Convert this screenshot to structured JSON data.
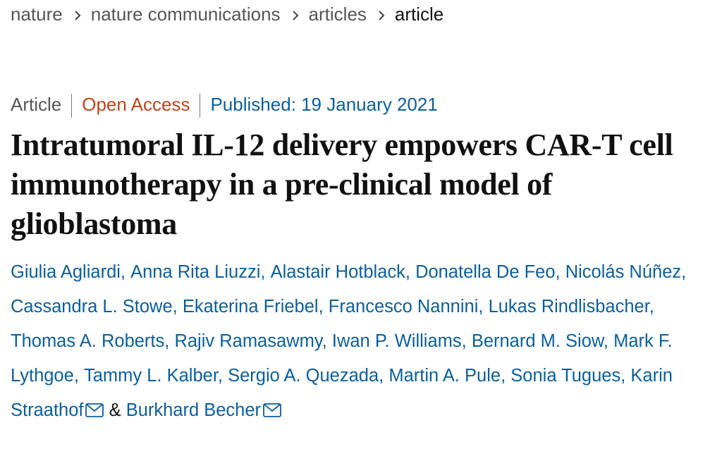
{
  "breadcrumb": [
    "nature",
    "nature communications",
    "articles",
    "article"
  ],
  "article": {
    "type": "Article",
    "access": "Open Access",
    "published": "Published: 19 January 2021",
    "title": "Intratumoral IL-12 delivery empowers CAR-T cell immunotherapy in a pre-clinical model of glioblastoma",
    "author_separator": ",",
    "last_author_separator": "&",
    "authors": [
      {
        "name": "Giulia Agliardi",
        "corresponding": false
      },
      {
        "name": "Anna Rita Liuzzi",
        "corresponding": false
      },
      {
        "name": "Alastair Hotblack",
        "corresponding": false
      },
      {
        "name": "Donatella De Feo",
        "corresponding": false
      },
      {
        "name": "Nicolás Núñez",
        "corresponding": false
      },
      {
        "name": "Cassandra L. Stowe",
        "corresponding": false
      },
      {
        "name": "Ekaterina Friebel",
        "corresponding": false
      },
      {
        "name": "Francesco Nannini",
        "corresponding": false
      },
      {
        "name": "Lukas Rindlisbacher",
        "corresponding": false
      },
      {
        "name": "Thomas A. Roberts",
        "corresponding": false
      },
      {
        "name": "Rajiv Ramasawmy",
        "corresponding": false
      },
      {
        "name": "Iwan P. Williams",
        "corresponding": false
      },
      {
        "name": "Bernard M. Siow",
        "corresponding": false
      },
      {
        "name": "Mark F. Lythgoe",
        "corresponding": false
      },
      {
        "name": "Tammy L. Kalber",
        "corresponding": false
      },
      {
        "name": "Sergio A. Quezada",
        "corresponding": false
      },
      {
        "name": "Martin A. Pule",
        "corresponding": false
      },
      {
        "name": "Sonia Tugues",
        "corresponding": false
      },
      {
        "name": "Karin Straathof",
        "corresponding": true
      },
      {
        "name": "Burkhard Becher",
        "corresponding": true
      }
    ]
  }
}
